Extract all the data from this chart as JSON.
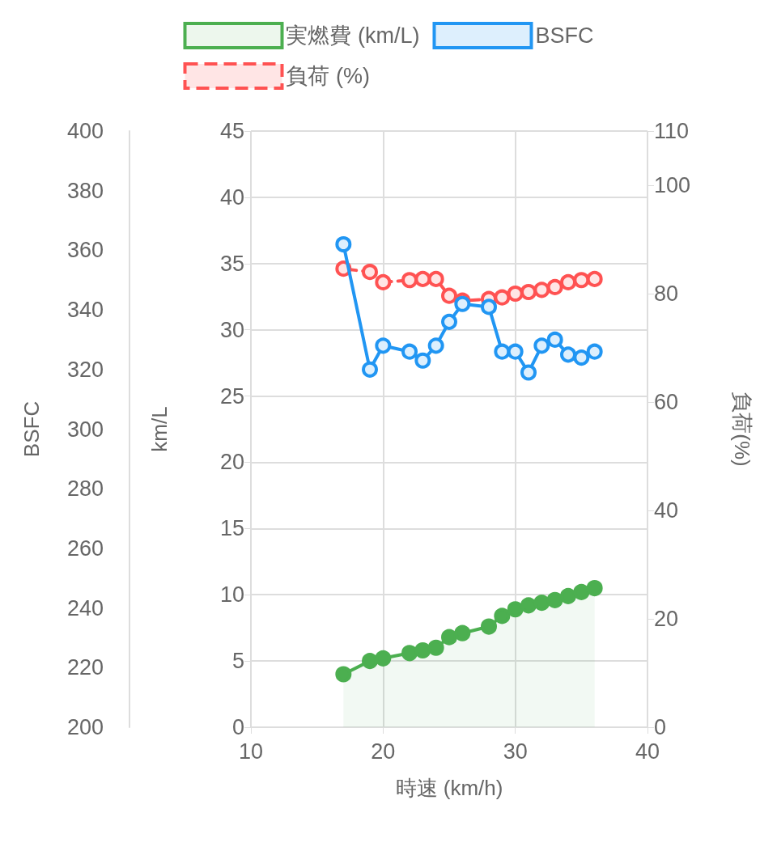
{
  "chart_data": {
    "type": "line",
    "xlabel": "時速 (km/h)",
    "ylabel": "km/L",
    "y2label": "BSFC",
    "y3label": "負荷(%)",
    "x": [
      17,
      19,
      20,
      22,
      23,
      24,
      25,
      26,
      28,
      29,
      30,
      31,
      32,
      33,
      34,
      35,
      36
    ],
    "series": [
      {
        "name": "実燃費 (km/L)",
        "type": "area",
        "color": "#4caf50",
        "values": [
          4.0,
          5.0,
          5.2,
          5.6,
          5.8,
          6.0,
          6.8,
          7.1,
          7.6,
          8.4,
          8.9,
          9.2,
          9.4,
          9.6,
          9.9,
          10.2,
          10.5
        ]
      },
      {
        "name": "BSFC",
        "axis": "y2",
        "color": "#2196f3",
        "values": [
          362,
          320,
          328,
          326,
          323,
          328,
          336,
          342,
          341,
          326,
          326,
          319,
          328,
          330,
          325,
          324,
          326
        ]
      },
      {
        "name": "負荷 (%)",
        "axis": "y3",
        "color": "#ff5252",
        "line_style": "dashed",
        "values": [
          84.6,
          84.0,
          82.1,
          82.5,
          82.7,
          82.7,
          79.6,
          78.7,
          79.0,
          79.3,
          80.0,
          80.3,
          80.7,
          81.2,
          82.1,
          82.5,
          82.7
        ]
      }
    ],
    "xlim": [
      10,
      40
    ],
    "xticks": [
      10,
      20,
      30,
      40
    ],
    "ylim": [
      0,
      45
    ],
    "yticks": [
      0,
      5,
      10,
      15,
      20,
      25,
      30,
      35,
      40,
      45
    ],
    "y2lim": [
      200,
      400
    ],
    "y2ticks": [
      200,
      220,
      240,
      260,
      280,
      300,
      320,
      340,
      360,
      380,
      400
    ],
    "y3lim": [
      0,
      110
    ],
    "y3ticks": [
      0,
      20,
      40,
      60,
      80,
      100,
      110
    ],
    "grid": true,
    "legend": "top",
    "marker": "circle"
  }
}
